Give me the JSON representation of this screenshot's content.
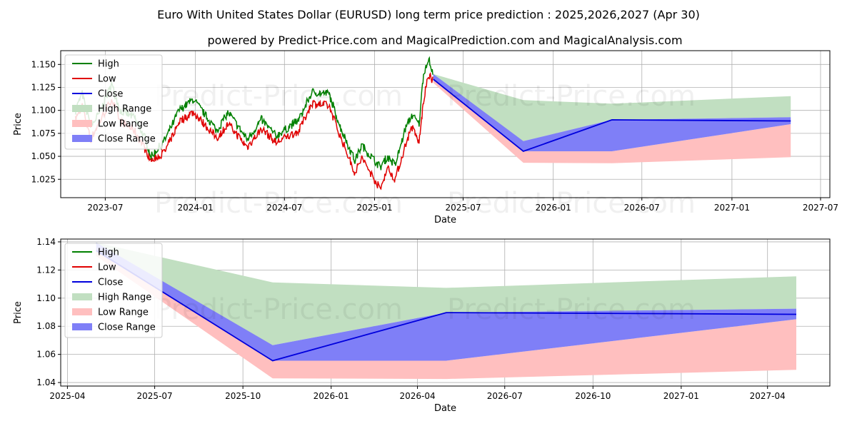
{
  "title": "Euro With United States Dollar (EURUSD) long term price prediction : 2025,2026,2027 (Apr 30)",
  "subtitle": "powered by Predict-Price.com and MagicalPrediction.com and MagicalAnalysis.com",
  "watermark": "Predict-Price.com",
  "colors": {
    "high": "#008000",
    "low": "#e00000",
    "close": "#0000dd",
    "high_range": "#c1dfc1",
    "low_range": "#ffbfbf",
    "close_range": "#7f7ff7"
  },
  "chart_data": [
    {
      "type": "line",
      "xlabel": "Date",
      "ylabel": "Price",
      "xlim": [
        "2023-04-01",
        "2027-07-20"
      ],
      "ylim": [
        1.005,
        1.165
      ],
      "x_ticks": [
        "2023-07",
        "2024-01",
        "2024-07",
        "2025-01",
        "2025-07",
        "2026-01",
        "2026-07",
        "2027-01",
        "2027-07"
      ],
      "y_ticks": [
        "1.025",
        "1.050",
        "1.075",
        "1.100",
        "1.125",
        "1.150"
      ],
      "grid": true,
      "legend": "top-left",
      "legend_labels": [
        "High",
        "Low",
        "Close",
        "High Range",
        "Low Range",
        "Close Range"
      ],
      "history_high_anchors": [
        [
          "2023-05-01",
          1.1
        ],
        [
          "2023-05-15",
          1.118
        ],
        [
          "2023-06-01",
          1.082
        ],
        [
          "2023-06-20",
          1.098
        ],
        [
          "2023-07-14",
          1.128
        ],
        [
          "2023-08-01",
          1.1
        ],
        [
          "2023-08-30",
          1.092
        ],
        [
          "2023-09-20",
          1.07
        ],
        [
          "2023-10-03",
          1.05
        ],
        [
          "2023-10-31",
          1.068
        ],
        [
          "2023-11-29",
          1.1
        ],
        [
          "2023-12-28",
          1.112
        ],
        [
          "2024-02-14",
          1.078
        ],
        [
          "2024-03-08",
          1.098
        ],
        [
          "2024-04-16",
          1.068
        ],
        [
          "2024-05-15",
          1.09
        ],
        [
          "2024-06-14",
          1.072
        ],
        [
          "2024-07-31",
          1.09
        ],
        [
          "2024-08-26",
          1.12
        ],
        [
          "2024-09-30",
          1.118
        ],
        [
          "2024-10-23",
          1.082
        ],
        [
          "2024-11-22",
          1.045
        ],
        [
          "2024-12-06",
          1.062
        ],
        [
          "2025-01-13",
          1.038
        ],
        [
          "2025-01-27",
          1.05
        ],
        [
          "2025-02-12",
          1.04
        ],
        [
          "2025-03-05",
          1.08
        ],
        [
          "2025-03-18",
          1.095
        ],
        [
          "2025-04-02",
          1.085
        ],
        [
          "2025-04-11",
          1.14
        ],
        [
          "2025-04-21",
          1.157
        ],
        [
          "2025-04-30",
          1.14
        ]
      ],
      "history_low_anchors": [
        [
          "2023-05-01",
          1.09
        ],
        [
          "2023-05-15",
          1.105
        ],
        [
          "2023-06-01",
          1.068
        ],
        [
          "2023-06-20",
          1.088
        ],
        [
          "2023-07-14",
          1.112
        ],
        [
          "2023-08-01",
          1.088
        ],
        [
          "2023-08-30",
          1.078
        ],
        [
          "2023-09-20",
          1.058
        ],
        [
          "2023-10-03",
          1.045
        ],
        [
          "2023-10-31",
          1.055
        ],
        [
          "2023-11-29",
          1.088
        ],
        [
          "2023-12-28",
          1.098
        ],
        [
          "2024-02-14",
          1.07
        ],
        [
          "2024-03-08",
          1.085
        ],
        [
          "2024-04-16",
          1.06
        ],
        [
          "2024-05-15",
          1.08
        ],
        [
          "2024-06-14",
          1.065
        ],
        [
          "2024-07-31",
          1.078
        ],
        [
          "2024-08-26",
          1.108
        ],
        [
          "2024-09-30",
          1.105
        ],
        [
          "2024-10-23",
          1.072
        ],
        [
          "2024-11-22",
          1.032
        ],
        [
          "2024-12-06",
          1.048
        ],
        [
          "2025-01-13",
          1.014
        ],
        [
          "2025-01-27",
          1.038
        ],
        [
          "2025-02-12",
          1.025
        ],
        [
          "2025-03-05",
          1.062
        ],
        [
          "2025-03-18",
          1.082
        ],
        [
          "2025-04-02",
          1.065
        ],
        [
          "2025-04-11",
          1.11
        ],
        [
          "2025-04-21",
          1.138
        ],
        [
          "2025-04-30",
          1.133
        ]
      ],
      "forecast": {
        "dates": [
          "2025-05-01",
          "2025-11-01",
          "2026-05-01",
          "2027-05-01"
        ],
        "close": [
          1.1339,
          1.0555,
          1.0897,
          1.0885
        ],
        "high_range": {
          "upper": [
            1.1395,
            1.1112,
            1.1073,
            1.1155
          ],
          "lower": [
            1.133,
            1.0665,
            1.0897,
            1.0925
          ]
        },
        "low_range": {
          "upper": [
            1.1339,
            1.0555,
            1.0555,
            1.085
          ],
          "lower": [
            1.13,
            1.043,
            1.0425,
            1.049
          ]
        },
        "close_range": {
          "upper": [
            1.1395,
            1.0665,
            1.0897,
            1.0925
          ],
          "lower": [
            1.133,
            1.0555,
            1.0555,
            1.085
          ]
        }
      }
    },
    {
      "type": "line",
      "xlabel": "Date",
      "ylabel": "Price",
      "xlim": [
        "2025-03-25",
        "2027-06-05"
      ],
      "ylim": [
        1.0375,
        1.142
      ],
      "x_ticks": [
        "2025-04",
        "2025-07",
        "2025-10",
        "2026-01",
        "2026-04",
        "2026-07",
        "2026-10",
        "2027-01",
        "2027-04"
      ],
      "y_ticks": [
        "1.04",
        "1.06",
        "1.08",
        "1.10",
        "1.12",
        "1.14"
      ],
      "grid": true,
      "legend": "top-left",
      "legend_labels": [
        "High",
        "Low",
        "Close",
        "High Range",
        "Low Range",
        "Close Range"
      ],
      "forecast": {
        "dates": [
          "2025-05-01",
          "2025-11-01",
          "2026-05-01",
          "2027-05-01"
        ],
        "close": [
          1.1339,
          1.0555,
          1.0897,
          1.0885
        ],
        "high_range": {
          "upper": [
            1.1395,
            1.1112,
            1.1073,
            1.1155
          ],
          "lower": [
            1.133,
            1.0665,
            1.0897,
            1.0925
          ]
        },
        "low_range": {
          "upper": [
            1.1339,
            1.0555,
            1.0555,
            1.085
          ],
          "lower": [
            1.13,
            1.043,
            1.0425,
            1.049
          ]
        },
        "close_range": {
          "upper": [
            1.1395,
            1.0665,
            1.0897,
            1.0925
          ],
          "lower": [
            1.133,
            1.0555,
            1.0555,
            1.085
          ]
        }
      }
    }
  ]
}
